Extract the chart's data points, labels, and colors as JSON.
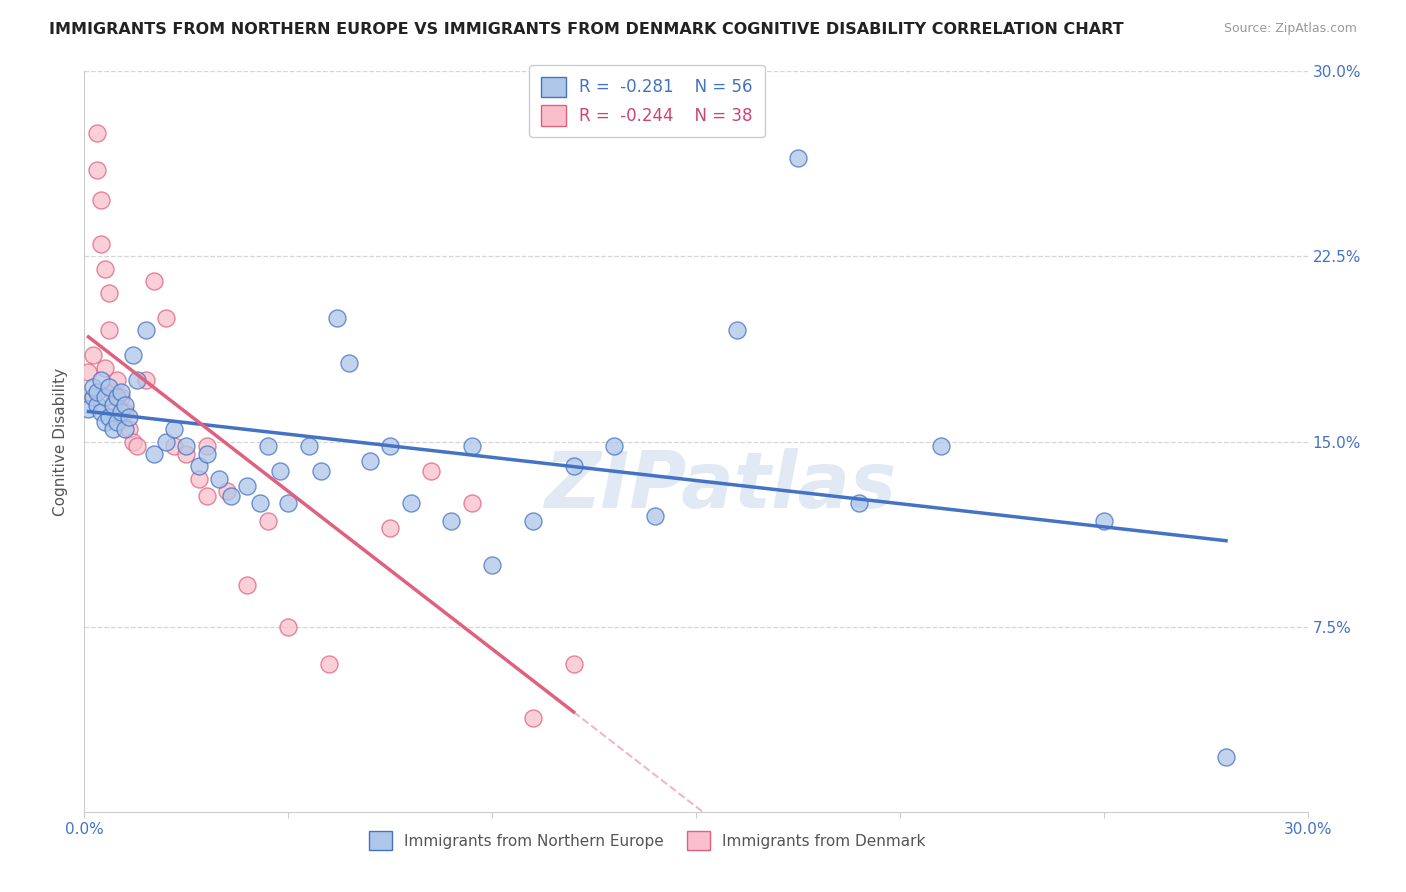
{
  "title": "IMMIGRANTS FROM NORTHERN EUROPE VS IMMIGRANTS FROM DENMARK COGNITIVE DISABILITY CORRELATION CHART",
  "source": "Source: ZipAtlas.com",
  "xlabel_blue": "Immigrants from Northern Europe",
  "xlabel_pink": "Immigrants from Denmark",
  "ylabel": "Cognitive Disability",
  "xlim": [
    0.0,
    0.3
  ],
  "ylim": [
    0.0,
    0.3
  ],
  "ytick_positions": [
    0.075,
    0.15,
    0.225,
    0.3
  ],
  "ytick_labels": [
    "7.5%",
    "15.0%",
    "22.5%",
    "30.0%"
  ],
  "xtick_positions": [
    0.0,
    0.05,
    0.1,
    0.15,
    0.2,
    0.25,
    0.3
  ],
  "xtick_labels": [
    "0.0%",
    "",
    "",
    "",
    "",
    "",
    "30.0%"
  ],
  "blue_R": -0.281,
  "blue_N": 56,
  "pink_R": -0.244,
  "pink_N": 38,
  "blue_color": "#aec6e8",
  "blue_edge_color": "#4472c4",
  "blue_line_color": "#4472c4",
  "pink_color": "#f9bfcc",
  "pink_edge_color": "#e06080",
  "pink_line_color": "#e06080",
  "blue_scatter_x": [
    0.001,
    0.002,
    0.002,
    0.003,
    0.003,
    0.004,
    0.004,
    0.005,
    0.005,
    0.006,
    0.006,
    0.007,
    0.007,
    0.008,
    0.008,
    0.009,
    0.009,
    0.01,
    0.01,
    0.011,
    0.012,
    0.013,
    0.015,
    0.017,
    0.02,
    0.022,
    0.025,
    0.028,
    0.03,
    0.033,
    0.036,
    0.04,
    0.043,
    0.045,
    0.048,
    0.05,
    0.055,
    0.058,
    0.062,
    0.065,
    0.07,
    0.075,
    0.08,
    0.09,
    0.095,
    0.1,
    0.11,
    0.12,
    0.13,
    0.14,
    0.16,
    0.175,
    0.19,
    0.21,
    0.25,
    0.28
  ],
  "blue_scatter_y": [
    0.163,
    0.168,
    0.172,
    0.165,
    0.17,
    0.175,
    0.162,
    0.168,
    0.158,
    0.172,
    0.16,
    0.165,
    0.155,
    0.168,
    0.158,
    0.162,
    0.17,
    0.155,
    0.165,
    0.16,
    0.185,
    0.175,
    0.195,
    0.145,
    0.15,
    0.155,
    0.148,
    0.14,
    0.145,
    0.135,
    0.128,
    0.132,
    0.125,
    0.148,
    0.138,
    0.125,
    0.148,
    0.138,
    0.2,
    0.182,
    0.142,
    0.148,
    0.125,
    0.118,
    0.148,
    0.1,
    0.118,
    0.14,
    0.148,
    0.12,
    0.195,
    0.265,
    0.125,
    0.148,
    0.118,
    0.022
  ],
  "pink_scatter_x": [
    0.001,
    0.002,
    0.002,
    0.003,
    0.003,
    0.004,
    0.004,
    0.005,
    0.005,
    0.006,
    0.006,
    0.007,
    0.007,
    0.008,
    0.008,
    0.009,
    0.01,
    0.011,
    0.012,
    0.013,
    0.015,
    0.017,
    0.02,
    0.022,
    0.025,
    0.028,
    0.03,
    0.035,
    0.04,
    0.05,
    0.06,
    0.075,
    0.085,
    0.095,
    0.11,
    0.12,
    0.03,
    0.045
  ],
  "pink_scatter_y": [
    0.178,
    0.185,
    0.168,
    0.275,
    0.26,
    0.248,
    0.23,
    0.22,
    0.18,
    0.21,
    0.195,
    0.17,
    0.165,
    0.175,
    0.16,
    0.168,
    0.162,
    0.155,
    0.15,
    0.148,
    0.175,
    0.215,
    0.2,
    0.148,
    0.145,
    0.135,
    0.148,
    0.13,
    0.092,
    0.075,
    0.06,
    0.115,
    0.138,
    0.125,
    0.038,
    0.06,
    0.128,
    0.118
  ],
  "watermark_text": "ZIPatlas",
  "background_color": "#ffffff",
  "grid_color": "#cccccc"
}
